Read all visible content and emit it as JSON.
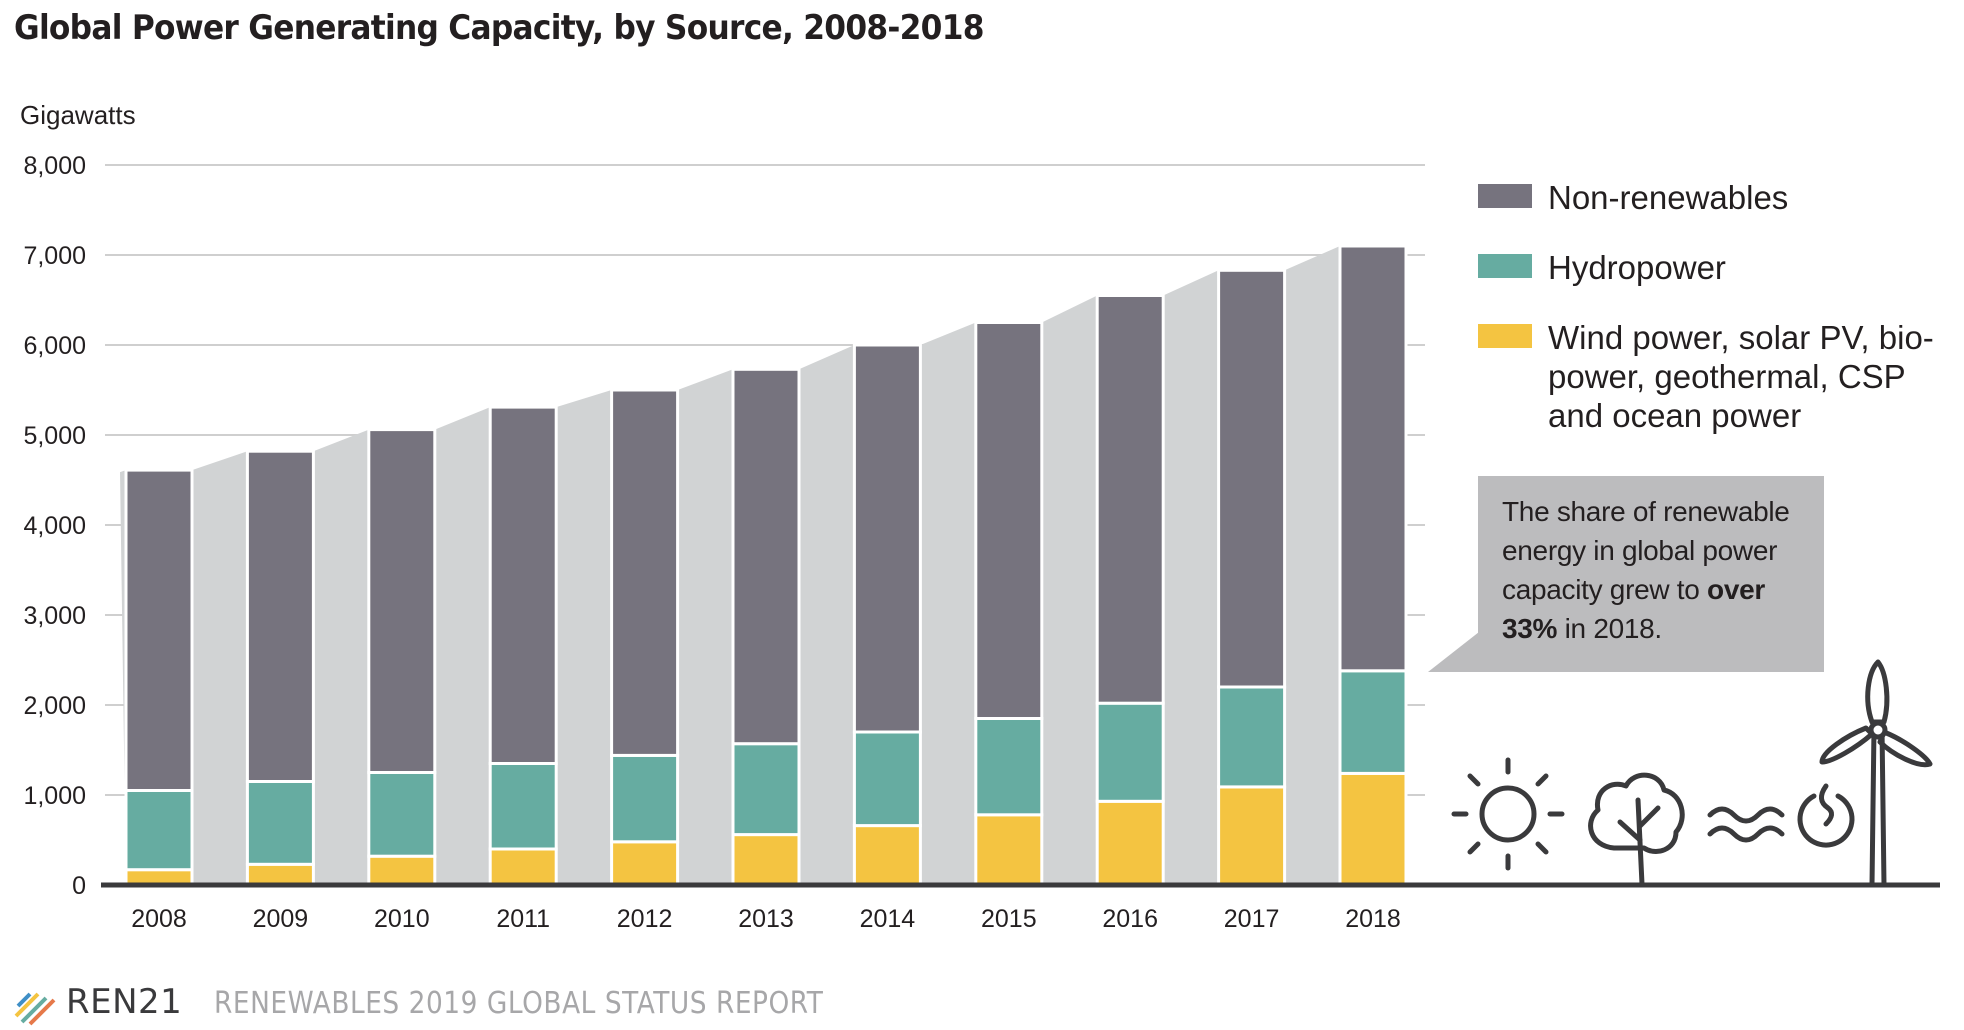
{
  "title": "Global Power Generating Capacity, by Source, 2008-2018",
  "colors": {
    "non_renewables": "#76737e",
    "hydropower": "#66aca1",
    "other_renewables": "#f4c441",
    "connector": "#d1d3d4",
    "callout": "#bcbcbe",
    "axis": "#3a3a3c",
    "grid": "#cfcfcf"
  },
  "chart_data": {
    "type": "bar",
    "stacked": true,
    "ylabel": "Gigawatts",
    "ylim": [
      0,
      8000
    ],
    "yticks": [
      0,
      1000,
      2000,
      3000,
      4000,
      5000,
      6000,
      7000,
      8000
    ],
    "ytick_labels": [
      "0",
      "1,000",
      "2,000",
      "3,000",
      "4,000",
      "5,000",
      "6,000",
      "7,000",
      "8,000"
    ],
    "categories": [
      "2008",
      "2009",
      "2010",
      "2011",
      "2012",
      "2013",
      "2014",
      "2015",
      "2016",
      "2017",
      "2018"
    ],
    "series": [
      {
        "name": "Wind power, solar PV, bio-power, geothermal, CSP and ocean power",
        "values": [
          170,
          230,
          320,
          400,
          480,
          560,
          660,
          780,
          930,
          1090,
          1240
        ]
      },
      {
        "name": "Hydropower",
        "values": [
          880,
          920,
          930,
          950,
          960,
          1010,
          1040,
          1070,
          1090,
          1110,
          1140
        ]
      },
      {
        "name": "Non-renewables",
        "values": [
          3560,
          3670,
          3810,
          3960,
          4060,
          4160,
          4300,
          4400,
          4530,
          4630,
          4720
        ]
      }
    ],
    "grid": true,
    "legend_position": "right"
  },
  "legend": {
    "items": [
      {
        "label": "Non-renewables",
        "color": "#76737e"
      },
      {
        "label": "Hydropower",
        "color": "#66aca1"
      },
      {
        "label": "Wind power, solar PV, bio-power, geothermal, CSP and ocean power",
        "color": "#f4c441"
      }
    ]
  },
  "callout": {
    "text_before": "The share of renewable energy in global power capacity grew to",
    "bold": "over 33%",
    "text_after": "in 2018."
  },
  "icons": [
    "sun-icon",
    "tree-icon",
    "wave-icon",
    "geothermal-icon",
    "wind-turbine-icon"
  ],
  "footer": {
    "logo_text": "REN21",
    "report": "RENEWABLES 2019 GLOBAL STATUS REPORT"
  }
}
